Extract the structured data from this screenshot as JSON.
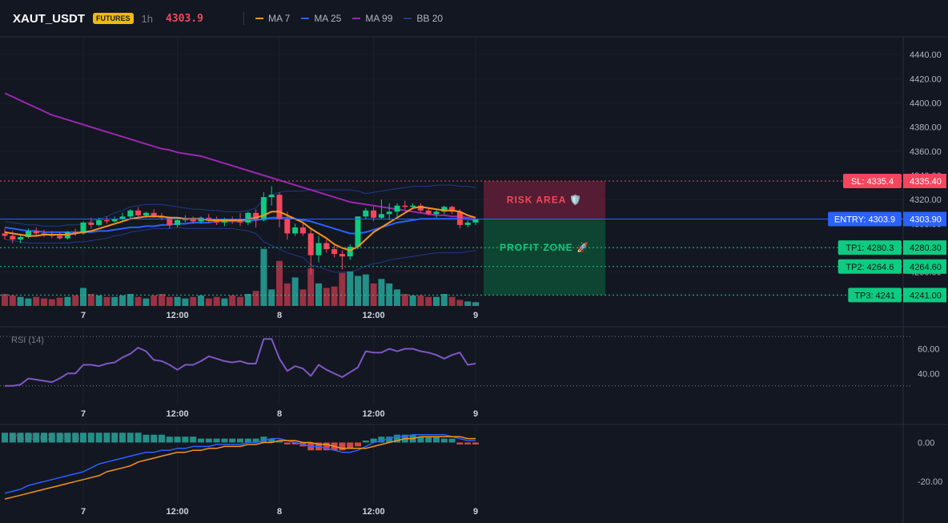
{
  "header": {
    "symbol": "XAUT_USDT",
    "badge": "FUTURES",
    "timeframe": "1h",
    "price": "4303.9",
    "legend": [
      {
        "name": "MA 7",
        "color": "#f7931a"
      },
      {
        "name": "MA 25",
        "color": "#2962ff"
      },
      {
        "name": "MA 99",
        "color": "#9c27b0"
      },
      {
        "name": "BB 20",
        "color": "#1e3a8a"
      }
    ]
  },
  "colors": {
    "background": "#131722",
    "up": "#0ecb81",
    "down": "#f6465d",
    "up_volume": "#26a69a",
    "down_volume": "#b2374a",
    "rsi": "#7e57c2",
    "macd_line": "#2962ff",
    "signal_line": "#f7931a"
  },
  "chart_data": [
    {
      "type": "candlestick",
      "title": "XAUT_USDT",
      "ylim": [
        4232,
        4452
      ],
      "y_ticks": [
        4440,
        4420,
        4400,
        4380,
        4360,
        4340,
        4320,
        4300,
        4280,
        4260,
        4240
      ],
      "x_ticks": [
        "7",
        "12:00",
        "8",
        "12:00",
        "9"
      ],
      "candles": [
        {
          "o": 4292,
          "h": 4296,
          "l": 4287,
          "c": 4290
        },
        {
          "o": 4290,
          "h": 4294,
          "l": 4284,
          "c": 4287
        },
        {
          "o": 4287,
          "h": 4291,
          "l": 4284,
          "c": 4289
        },
        {
          "o": 4289,
          "h": 4296,
          "l": 4288,
          "c": 4294
        },
        {
          "o": 4294,
          "h": 4297,
          "l": 4290,
          "c": 4292
        },
        {
          "o": 4292,
          "h": 4295,
          "l": 4289,
          "c": 4291
        },
        {
          "o": 4291,
          "h": 4294,
          "l": 4288,
          "c": 4290
        },
        {
          "o": 4290,
          "h": 4293,
          "l": 4287,
          "c": 4288
        },
        {
          "o": 4288,
          "h": 4294,
          "l": 4287,
          "c": 4293
        },
        {
          "o": 4293,
          "h": 4296,
          "l": 4290,
          "c": 4292
        },
        {
          "o": 4292,
          "h": 4302,
          "l": 4291,
          "c": 4301
        },
        {
          "o": 4301,
          "h": 4305,
          "l": 4296,
          "c": 4299
        },
        {
          "o": 4299,
          "h": 4305,
          "l": 4298,
          "c": 4303
        },
        {
          "o": 4303,
          "h": 4306,
          "l": 4300,
          "c": 4302
        },
        {
          "o": 4302,
          "h": 4306,
          "l": 4301,
          "c": 4304
        },
        {
          "o": 4304,
          "h": 4309,
          "l": 4302,
          "c": 4306
        },
        {
          "o": 4306,
          "h": 4312,
          "l": 4304,
          "c": 4311
        },
        {
          "o": 4311,
          "h": 4314,
          "l": 4305,
          "c": 4307
        },
        {
          "o": 4307,
          "h": 4310,
          "l": 4305,
          "c": 4309
        },
        {
          "o": 4309,
          "h": 4312,
          "l": 4305,
          "c": 4306
        },
        {
          "o": 4306,
          "h": 4309,
          "l": 4303,
          "c": 4305
        },
        {
          "o": 4305,
          "h": 4306,
          "l": 4296,
          "c": 4299
        },
        {
          "o": 4299,
          "h": 4304,
          "l": 4297,
          "c": 4303
        },
        {
          "o": 4303,
          "h": 4307,
          "l": 4301,
          "c": 4304
        },
        {
          "o": 4304,
          "h": 4306,
          "l": 4300,
          "c": 4302
        },
        {
          "o": 4302,
          "h": 4306,
          "l": 4300,
          "c": 4305
        },
        {
          "o": 4305,
          "h": 4308,
          "l": 4301,
          "c": 4303
        },
        {
          "o": 4303,
          "h": 4306,
          "l": 4299,
          "c": 4301
        },
        {
          "o": 4301,
          "h": 4305,
          "l": 4298,
          "c": 4304
        },
        {
          "o": 4304,
          "h": 4306,
          "l": 4300,
          "c": 4302
        },
        {
          "o": 4302,
          "h": 4309,
          "l": 4298,
          "c": 4301
        },
        {
          "o": 4301,
          "h": 4310,
          "l": 4299,
          "c": 4309
        },
        {
          "o": 4309,
          "h": 4312,
          "l": 4297,
          "c": 4303
        },
        {
          "o": 4303,
          "h": 4326,
          "l": 4302,
          "c": 4322
        },
        {
          "o": 4322,
          "h": 4331,
          "l": 4315,
          "c": 4324
        },
        {
          "o": 4324,
          "h": 4326,
          "l": 4297,
          "c": 4304
        },
        {
          "o": 4304,
          "h": 4310,
          "l": 4287,
          "c": 4292
        },
        {
          "o": 4292,
          "h": 4300,
          "l": 4290,
          "c": 4297
        },
        {
          "o": 4297,
          "h": 4301,
          "l": 4290,
          "c": 4292
        },
        {
          "o": 4292,
          "h": 4296,
          "l": 4258,
          "c": 4274
        },
        {
          "o": 4274,
          "h": 4290,
          "l": 4268,
          "c": 4284
        },
        {
          "o": 4284,
          "h": 4287,
          "l": 4276,
          "c": 4279
        },
        {
          "o": 4279,
          "h": 4282,
          "l": 4272,
          "c": 4275
        },
        {
          "o": 4275,
          "h": 4278,
          "l": 4262,
          "c": 4273
        },
        {
          "o": 4273,
          "h": 4283,
          "l": 4270,
          "c": 4281
        },
        {
          "o": 4281,
          "h": 4306,
          "l": 4279,
          "c": 4306
        },
        {
          "o": 4306,
          "h": 4313,
          "l": 4304,
          "c": 4311
        },
        {
          "o": 4311,
          "h": 4314,
          "l": 4302,
          "c": 4305
        },
        {
          "o": 4305,
          "h": 4320,
          "l": 4304,
          "c": 4308
        },
        {
          "o": 4308,
          "h": 4317,
          "l": 4303,
          "c": 4310
        },
        {
          "o": 4310,
          "h": 4317,
          "l": 4306,
          "c": 4315
        },
        {
          "o": 4315,
          "h": 4319,
          "l": 4312,
          "c": 4314
        },
        {
          "o": 4314,
          "h": 4317,
          "l": 4312,
          "c": 4315
        },
        {
          "o": 4315,
          "h": 4317,
          "l": 4309,
          "c": 4311
        },
        {
          "o": 4311,
          "h": 4313,
          "l": 4307,
          "c": 4308
        },
        {
          "o": 4308,
          "h": 4312,
          "l": 4305,
          "c": 4310
        },
        {
          "o": 4310,
          "h": 4315,
          "l": 4308,
          "c": 4314
        },
        {
          "o": 4314,
          "h": 4315,
          "l": 4308,
          "c": 4310
        },
        {
          "o": 4310,
          "h": 4312,
          "l": 4296,
          "c": 4299
        },
        {
          "o": 4299,
          "h": 4303,
          "l": 4297,
          "c": 4301
        },
        {
          "o": 4301,
          "h": 4304,
          "l": 4299,
          "c": 4303.9
        }
      ],
      "volume": [
        16,
        14,
        12,
        10,
        12,
        10,
        9,
        11,
        12,
        14,
        24,
        16,
        14,
        12,
        12,
        14,
        16,
        12,
        10,
        14,
        16,
        12,
        12,
        10,
        12,
        14,
        10,
        12,
        10,
        14,
        12,
        16,
        20,
        76,
        22,
        60,
        30,
        38,
        22,
        50,
        30,
        24,
        26,
        44,
        46,
        40,
        42,
        30,
        36,
        30,
        22,
        16,
        14,
        14,
        12,
        12,
        16,
        12,
        8,
        6,
        5
      ],
      "series": [
        {
          "name": "MA 7",
          "values": [
            4293,
            4292,
            4291,
            4290,
            4290,
            4291,
            4291,
            4291,
            4291,
            4292,
            4293,
            4294,
            4296,
            4298,
            4300,
            4302,
            4304,
            4305,
            4306,
            4306,
            4306,
            4305,
            4305,
            4304,
            4304,
            4304,
            4303,
            4303,
            4303,
            4303,
            4303,
            4304,
            4305,
            4307,
            4310,
            4310,
            4307,
            4304,
            4301,
            4296,
            4292,
            4288,
            4283,
            4280,
            4278,
            4281,
            4287,
            4293,
            4297,
            4301,
            4305,
            4309,
            4313,
            4314,
            4313,
            4312,
            4311,
            4311,
            4310,
            4307,
            4305
          ]
        },
        {
          "name": "MA 25",
          "values": [
            4297,
            4296,
            4295,
            4294,
            4294,
            4293,
            4293,
            4293,
            4293,
            4293,
            4293,
            4293,
            4294,
            4294,
            4295,
            4296,
            4297,
            4297,
            4298,
            4298,
            4299,
            4299,
            4300,
            4300,
            4301,
            4301,
            4301,
            4302,
            4302,
            4302,
            4302,
            4303,
            4303,
            4304,
            4305,
            4305,
            4305,
            4304,
            4303,
            4302,
            4300,
            4298,
            4296,
            4294,
            4292,
            4292,
            4293,
            4295,
            4297,
            4299,
            4301,
            4302,
            4303,
            4304,
            4304,
            4304,
            4304,
            4304,
            4304,
            4304,
            4303
          ]
        },
        {
          "name": "MA 99",
          "values": [
            4408,
            4405,
            4402,
            4399,
            4396,
            4393,
            4390,
            4388,
            4386,
            4384,
            4382,
            4380,
            4378,
            4376,
            4374,
            4372,
            4370,
            4368,
            4366,
            4364,
            4362,
            4361,
            4359,
            4358,
            4357,
            4356,
            4354,
            4352,
            4350,
            4348,
            4346,
            4344,
            4342,
            4340,
            4338,
            4336,
            4334,
            4332,
            4330,
            4328,
            4326,
            4324,
            4322,
            4320,
            4318,
            4317,
            4316,
            4315,
            4314,
            4313,
            4312,
            4311,
            4310,
            4309,
            4308,
            4307,
            4307,
            4306,
            4306,
            4305,
            4305
          ]
        },
        {
          "name": "BB 20 upper",
          "values": [
            4302,
            4301,
            4300,
            4299,
            4299,
            4298,
            4298,
            4298,
            4299,
            4299,
            4300,
            4302,
            4304,
            4306,
            4309,
            4311,
            4314,
            4315,
            4316,
            4316,
            4316,
            4315,
            4314,
            4313,
            4312,
            4312,
            4311,
            4311,
            4310,
            4310,
            4310,
            4311,
            4313,
            4320,
            4324,
            4326,
            4327,
            4327,
            4327,
            4328,
            4328,
            4328,
            4328,
            4328,
            4328,
            4327,
            4325,
            4326,
            4327,
            4328,
            4329,
            4330,
            4331,
            4331,
            4331,
            4332,
            4332,
            4332,
            4331,
            4331,
            4330
          ]
        },
        {
          "name": "BB 20 lower",
          "values": [
            4287,
            4286,
            4285,
            4284,
            4284,
            4284,
            4284,
            4284,
            4284,
            4285,
            4285,
            4286,
            4287,
            4288,
            4290,
            4291,
            4293,
            4294,
            4295,
            4296,
            4296,
            4296,
            4297,
            4296,
            4296,
            4296,
            4296,
            4296,
            4296,
            4296,
            4295,
            4294,
            4292,
            4285,
            4282,
            4279,
            4276,
            4274,
            4272,
            4266,
            4264,
            4262,
            4260,
            4260,
            4260,
            4262,
            4265,
            4267,
            4268,
            4270,
            4271,
            4272,
            4273,
            4274,
            4275,
            4276,
            4276,
            4276,
            4276,
            4277,
            4278
          ]
        }
      ],
      "levels": [
        {
          "name": "SL",
          "label": "SL: 4335.4",
          "price_label": "4335.40",
          "value": 4335.4,
          "color": "#f6465d"
        },
        {
          "name": "ENTRY",
          "label": "ENTRY: 4303.9",
          "price_label": "4303.90",
          "value": 4303.9,
          "color": "#2962ff"
        },
        {
          "name": "TP1",
          "label": "TP1: 4280.3",
          "price_label": "4280.30",
          "value": 4280.3,
          "color": "#0ecb81"
        },
        {
          "name": "TP2",
          "label": "TP2: 4264.6",
          "price_label": "4264.60",
          "value": 4264.6,
          "color": "#0ecb81"
        },
        {
          "name": "TP3",
          "label": "TP3: 4241",
          "price_label": "4241.00",
          "value": 4241,
          "color": "#0ecb81"
        }
      ],
      "zones": {
        "risk": {
          "label": "RISK AREA 🛡️",
          "from": 4303.9,
          "to": 4335.4
        },
        "profit": {
          "label": "PROFIT ZONE 🚀",
          "from": 4241,
          "to": 4303.9
        }
      }
    },
    {
      "type": "line",
      "title": "RSI (14)",
      "ylim": [
        22,
        74
      ],
      "y_ticks": [
        60.0,
        40.0
      ],
      "bands": [
        70,
        30
      ],
      "x_ticks": [
        "7",
        "12:00",
        "8",
        "12:00",
        "9"
      ],
      "values": [
        30,
        30,
        31,
        36,
        35,
        34,
        33,
        36,
        40,
        40,
        47,
        47,
        46,
        48,
        49,
        53,
        56,
        61,
        58,
        51,
        50,
        47,
        43,
        47,
        47,
        50,
        54,
        52,
        50,
        49,
        50,
        48,
        48,
        68,
        68,
        52,
        42,
        46,
        44,
        38,
        47,
        43,
        40,
        37,
        41,
        45,
        58,
        57,
        57,
        60,
        58,
        60,
        60,
        58,
        57,
        55,
        52,
        55,
        57,
        47,
        48
      ]
    },
    {
      "type": "bar",
      "title": "MACD (12, 26, 9)",
      "ylim": [
        -31,
        8
      ],
      "y_ticks": [
        0.0,
        -20.0
      ],
      "x_ticks": [
        "7",
        "12:00",
        "8",
        "12:00",
        "9"
      ],
      "histogram": [
        5,
        5,
        5,
        5,
        5,
        5,
        5,
        5,
        5,
        5,
        5,
        5,
        5,
        5,
        5,
        5,
        5,
        5,
        4,
        4,
        4,
        3,
        3,
        3,
        3,
        2,
        2,
        2,
        2,
        2,
        2,
        2,
        2,
        3,
        2,
        1,
        -1,
        -1,
        -2,
        -4,
        -4,
        -4,
        -4,
        -4,
        -3,
        -2,
        1,
        2,
        3,
        3,
        4,
        4,
        4,
        3,
        3,
        3,
        2,
        2,
        -1,
        -1,
        -1
      ],
      "series": [
        {
          "name": "MACD",
          "values": [
            -26,
            -25,
            -24,
            -22,
            -21,
            -20,
            -19,
            -18,
            -17,
            -16,
            -15,
            -13,
            -11,
            -10,
            -9,
            -8,
            -7,
            -6,
            -5,
            -5,
            -4,
            -4,
            -3,
            -3,
            -2,
            -2,
            -2,
            -1,
            -1,
            -1,
            -1,
            0,
            0,
            1,
            2,
            2,
            1,
            0,
            -1,
            -2,
            -2,
            -3,
            -4,
            -5,
            -5,
            -4,
            -2,
            0,
            1,
            2,
            3,
            3,
            4,
            4,
            4,
            4,
            4,
            3,
            2,
            1,
            1
          ]
        },
        {
          "name": "Signal",
          "values": [
            -29,
            -28,
            -27,
            -26,
            -25,
            -24,
            -23,
            -22,
            -21,
            -20,
            -19,
            -18,
            -17,
            -15,
            -14,
            -13,
            -12,
            -10,
            -9,
            -8,
            -7,
            -6,
            -5,
            -5,
            -4,
            -4,
            -3,
            -3,
            -2,
            -2,
            -2,
            -1,
            -1,
            0,
            0,
            1,
            1,
            1,
            0,
            0,
            -1,
            -1,
            -2,
            -3,
            -3,
            -3,
            -3,
            -2,
            -1,
            0,
            1,
            2,
            2,
            3,
            3,
            3,
            3,
            3,
            3,
            2,
            2
          ]
        }
      ]
    }
  ]
}
